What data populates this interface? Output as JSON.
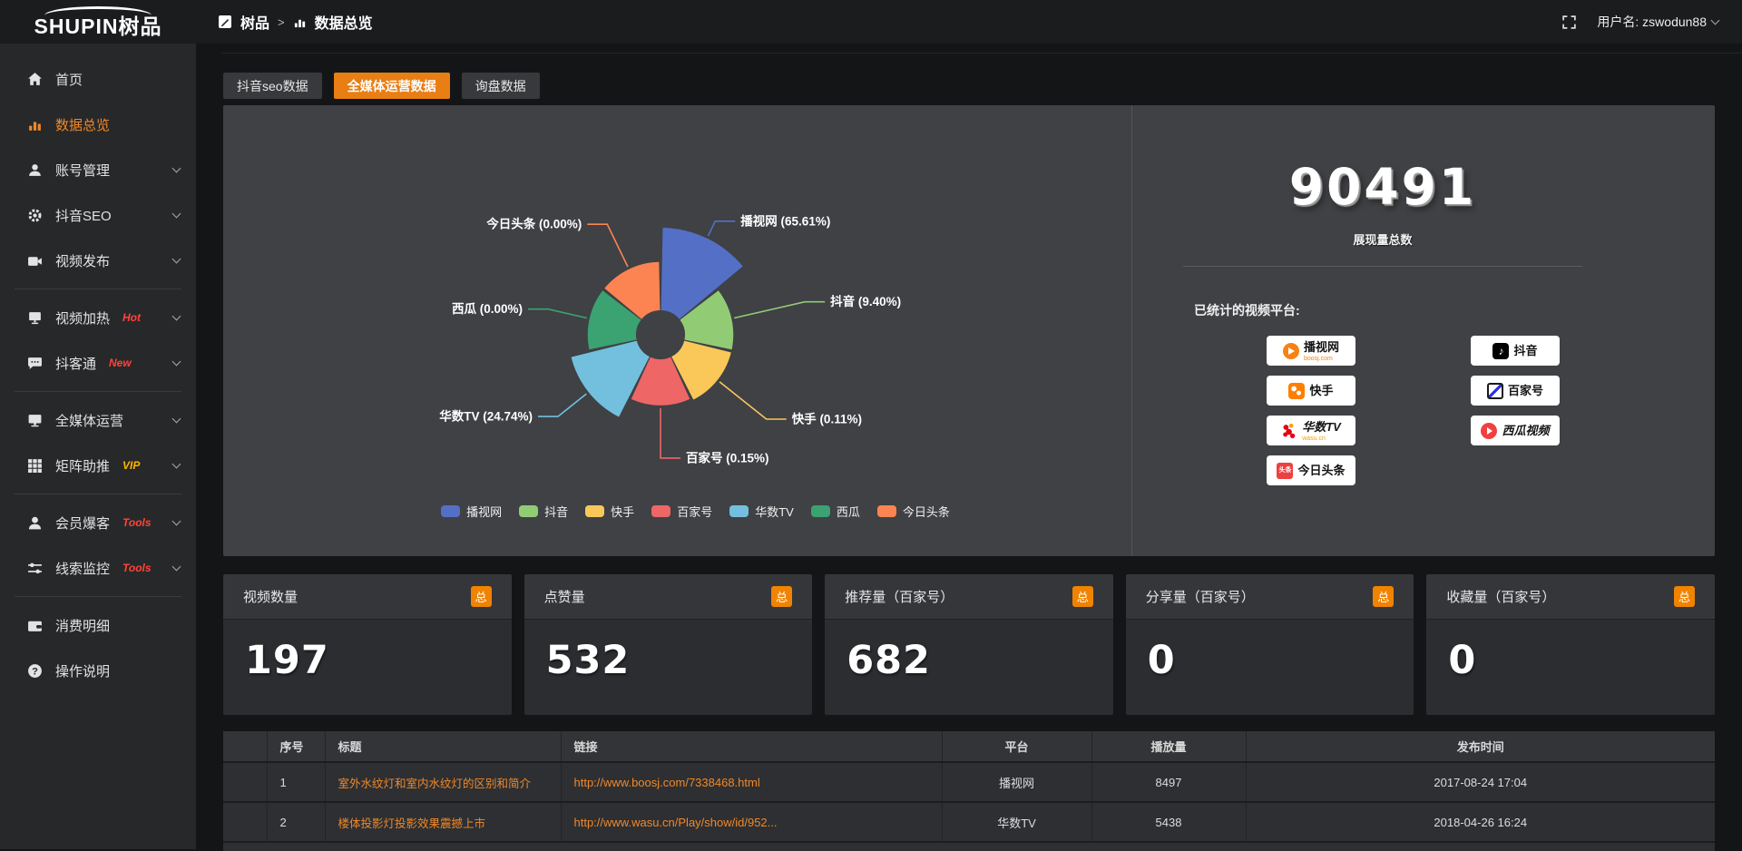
{
  "header": {
    "logo_main": "SHUPIN",
    "logo_cn": "树品",
    "breadcrumb_app": "树品",
    "breadcrumb_sep": ">",
    "breadcrumb_page": "数据总览",
    "username": "用户名: zswodun88"
  },
  "sidebar": {
    "items": [
      {
        "label": "首页",
        "icon": "home"
      },
      {
        "label": "数据总览",
        "icon": "chart",
        "active": true
      },
      {
        "label": "账号管理",
        "icon": "user",
        "chevron": true
      },
      {
        "label": "抖音SEO",
        "icon": "gear",
        "chevron": true
      },
      {
        "label": "视频发布",
        "icon": "video",
        "chevron": true,
        "divider": true
      },
      {
        "label": "视频加热",
        "icon": "heat",
        "chevron": true,
        "badge": "Hot",
        "badge_color": "#ff4438"
      },
      {
        "label": "抖客通",
        "icon": "comment",
        "chevron": true,
        "badge": "New",
        "badge_color": "#ff4438",
        "divider": true
      },
      {
        "label": "全媒体运营",
        "icon": "monitor",
        "chevron": true
      },
      {
        "label": "矩阵助推",
        "icon": "grid",
        "chevron": true,
        "badge": "VIP",
        "badge_color": "#ffb400",
        "divider": true
      },
      {
        "label": "会员爆客",
        "icon": "member",
        "chevron": true,
        "badge": "Tools",
        "badge_color": "#ff4438"
      },
      {
        "label": "线索监控",
        "icon": "filter",
        "chevron": true,
        "badge": "Tools",
        "badge_color": "#ff4438",
        "divider": true
      },
      {
        "label": "消费明细",
        "icon": "wallet"
      },
      {
        "label": "操作说明",
        "icon": "question"
      }
    ]
  },
  "tabs": [
    {
      "label": "抖音seo数据",
      "active": false
    },
    {
      "label": "全媒体运营数据",
      "active": true
    },
    {
      "label": "询盘数据",
      "active": false
    }
  ],
  "chart_data": {
    "type": "pie",
    "subtype": "nightingale-rose",
    "legend_position": "bottom",
    "label_format": "{name} ({pct}%)",
    "series": [
      {
        "name": "播视网",
        "pct": 65.61,
        "color": "#5470c6",
        "r": 1.0,
        "label_ext": 18
      },
      {
        "name": "抖音",
        "pct": 9.4,
        "color": "#91cc75",
        "r": 0.68,
        "label_ext": 80
      },
      {
        "name": "快手",
        "pct": 0.11,
        "color": "#fac858",
        "r": 0.68,
        "label_ext": 66
      },
      {
        "name": "百家号",
        "pct": 0.15,
        "color": "#ee6666",
        "r": 0.66,
        "label_ext": 55
      },
      {
        "name": "华数TV",
        "pct": 24.74,
        "color": "#73c0de",
        "r": 0.86,
        "label_ext": 40
      },
      {
        "name": "西瓜",
        "pct": 0.0,
        "color": "#3ba272",
        "r": 0.68,
        "label_ext": 44
      },
      {
        "name": "今日头条",
        "pct": 0.0,
        "color": "#fc8452",
        "r": 0.68,
        "label_ext": 52
      }
    ]
  },
  "summary": {
    "total": "90491",
    "total_label": "展现量总数",
    "platforms_title": "已统计的视频平台:",
    "platforms": [
      {
        "name": "播视网",
        "sub": "boosj.com",
        "logo": "boosj"
      },
      {
        "name": "抖音",
        "logo": "douyin"
      },
      {
        "name": "快手",
        "logo": "kuaishou"
      },
      {
        "name": "百家号",
        "logo": "baijiahao"
      },
      {
        "name": "华数TV",
        "sub": "wasu.cn",
        "logo": "wasu"
      },
      {
        "name": "西瓜视频",
        "logo": "xigua"
      },
      {
        "name": "今日头条",
        "logo": "toutiao"
      }
    ]
  },
  "stat_cards": [
    {
      "title": "视频数量",
      "badge": "总",
      "value": "197"
    },
    {
      "title": "点赞量",
      "badge": "总",
      "value": "532"
    },
    {
      "title": "推荐量（百家号）",
      "badge": "总",
      "value": "682"
    },
    {
      "title": "分享量（百家号）",
      "badge": "总",
      "value": "0"
    },
    {
      "title": "收藏量（百家号）",
      "badge": "总",
      "value": "0"
    }
  ],
  "table": {
    "columns": [
      "序号",
      "标题",
      "链接",
      "平台",
      "播放量",
      "发布时间"
    ],
    "rows": [
      {
        "seq": "1",
        "title": "室外水纹灯和室内水纹灯的区别和简介",
        "link": "http://www.boosj.com/7338468.html",
        "platform": "播视网",
        "plays": "8497",
        "time": "2017-08-24 17:04"
      },
      {
        "seq": "2",
        "title": "楼体投影灯投影效果震撼上市",
        "link": "http://www.wasu.cn/Play/show/id/952...",
        "platform": "华数TV",
        "plays": "5438",
        "time": "2018-04-26 16:24"
      }
    ]
  }
}
